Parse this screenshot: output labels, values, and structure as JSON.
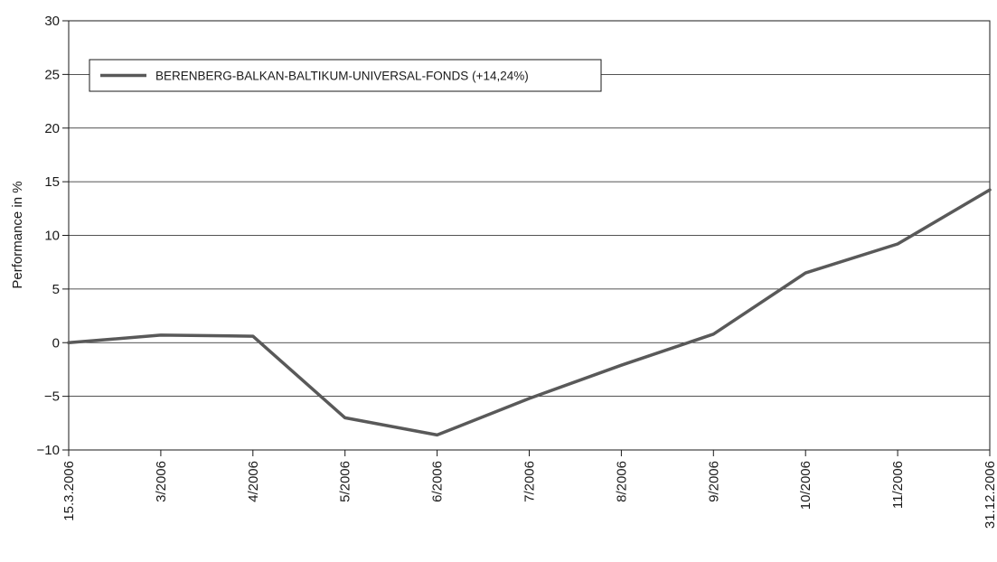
{
  "chart_data": {
    "type": "line",
    "title": "",
    "xlabel": "",
    "ylabel": "Performance in %",
    "ylim": [
      -10,
      30
    ],
    "yticks": [
      -10,
      -5,
      0,
      5,
      10,
      15,
      20,
      25,
      30
    ],
    "ytick_labels": [
      "−10",
      "−5",
      "0",
      "5",
      "10",
      "15",
      "20",
      "25",
      "30"
    ],
    "grid": true,
    "legend_position": "top-left",
    "categories": [
      "15.3.2006",
      "3/2006",
      "4/2006",
      "5/2006",
      "6/2006",
      "7/2006",
      "8/2006",
      "9/2006",
      "10/2006",
      "11/2006",
      "31.12.2006"
    ],
    "series": [
      {
        "name": "BERENBERG-BALKAN-BALTIKUM-UNIVERSAL-FONDS (+14,24%)",
        "color": "#595959",
        "values": [
          0,
          0.7,
          0.6,
          -7.0,
          -8.6,
          -5.2,
          -2.1,
          0.8,
          6.5,
          9.2,
          14.24
        ]
      }
    ]
  }
}
